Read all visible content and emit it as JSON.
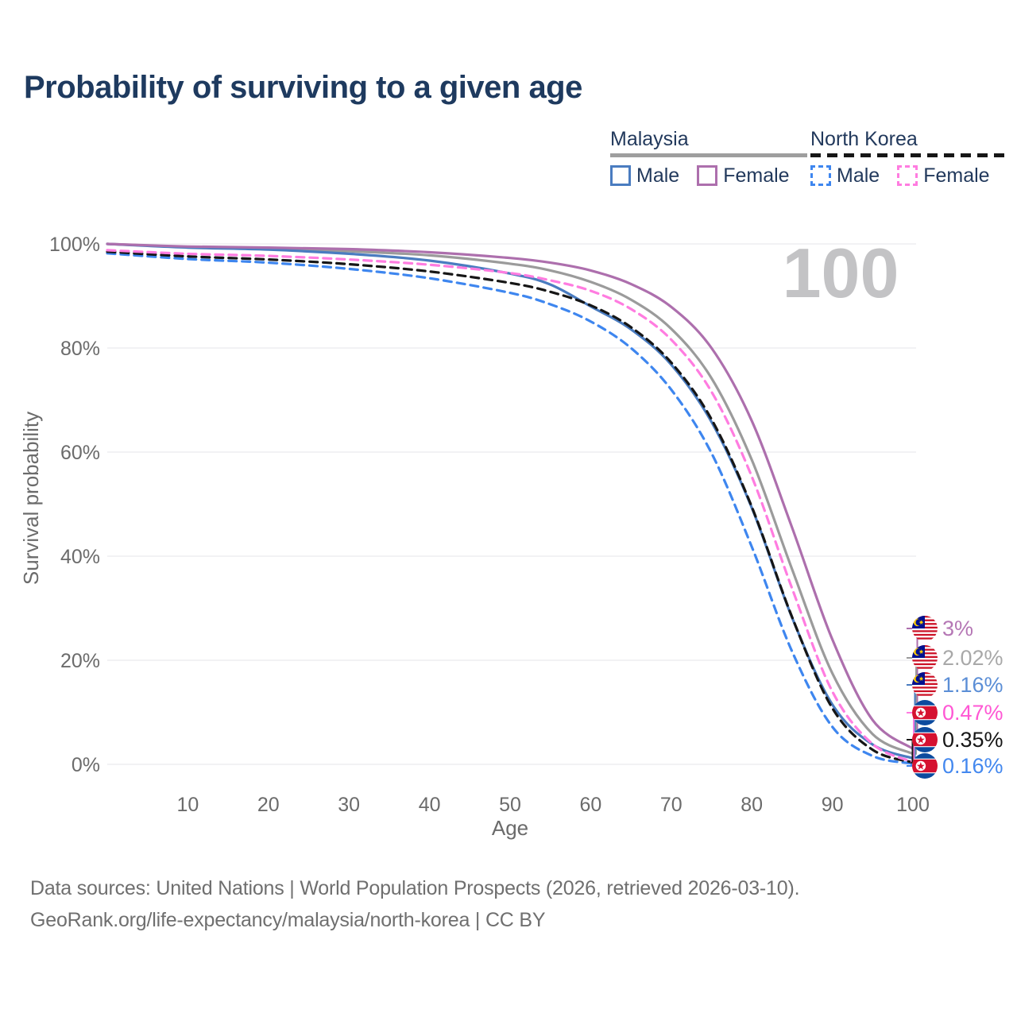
{
  "title": "Probability of surviving to a given age",
  "watermark": "100",
  "legend": {
    "groups": [
      {
        "label": "Malaysia",
        "underline_color": "#9e9e9e",
        "underline_dashed": false,
        "items": [
          {
            "label": "Male",
            "color": "#4a7cc0",
            "dashed": false
          },
          {
            "label": "Female",
            "color": "#ad6fad",
            "dashed": false
          }
        ]
      },
      {
        "label": "North Korea",
        "underline_color": "#161616",
        "underline_dashed": true,
        "items": [
          {
            "label": "Male",
            "color": "#3e86ef",
            "dashed": true
          },
          {
            "label": "Female",
            "color": "#ff7ce0",
            "dashed": true
          }
        ]
      }
    ]
  },
  "chart_data": {
    "type": "line",
    "title": "Probability of surviving to a given age",
    "xlabel": "Age",
    "ylabel": "Survival probability",
    "xlim": [
      0,
      100
    ],
    "ylim": [
      0,
      100
    ],
    "x_ticks": [
      10,
      20,
      30,
      40,
      50,
      60,
      70,
      80,
      90,
      100
    ],
    "y_ticks": [
      {
        "value": 0,
        "label": "0%"
      },
      {
        "value": 20,
        "label": "20%"
      },
      {
        "value": 40,
        "label": "40%"
      },
      {
        "value": 60,
        "label": "60%"
      },
      {
        "value": 80,
        "label": "80%"
      },
      {
        "value": 100,
        "label": "100%"
      }
    ],
    "grid": "horizontal-only",
    "ages": [
      0,
      10,
      20,
      30,
      40,
      50,
      55,
      60,
      65,
      70,
      75,
      80,
      85,
      90,
      95,
      100
    ],
    "series": [
      {
        "name": "Malaysia Female",
        "country": "Malaysia",
        "sex": "Female",
        "color": "#ad6fad",
        "dashed": false,
        "flag": "malaysia",
        "end_label": "3%",
        "end_label_color": "#b577b5",
        "values": [
          100,
          99.5,
          99.3,
          99.0,
          98.4,
          97.3,
          96.4,
          94.9,
          92.3,
          87.9,
          80.0,
          66.0,
          45.5,
          24.0,
          8.5,
          3.0
        ]
      },
      {
        "name": "Malaysia Total",
        "country": "Malaysia",
        "sex": "Both",
        "color": "#9b9b9b",
        "dashed": false,
        "flag": "malaysia",
        "end_label": "2.02%",
        "end_label_color": "#a8a8a8",
        "values": [
          100,
          99.4,
          99.1,
          98.6,
          97.8,
          96.2,
          94.9,
          92.7,
          89.3,
          83.7,
          74.2,
          58.5,
          37.5,
          17.5,
          5.8,
          2.02
        ]
      },
      {
        "name": "Malaysia Male",
        "country": "Malaysia",
        "sex": "Male",
        "color": "#4a7cc0",
        "dashed": false,
        "flag": "malaysia",
        "end_label": "1.16%",
        "end_label_color": "#5b8ed6",
        "values": [
          100,
          99.3,
          98.9,
          98.1,
          96.8,
          94.3,
          92.2,
          88.0,
          83.6,
          76.8,
          65.8,
          49.3,
          28.2,
          11.5,
          3.8,
          1.16
        ]
      },
      {
        "name": "North Korea Female",
        "country": "North Korea",
        "sex": "Female",
        "color": "#ff7ce0",
        "dashed": true,
        "flag": "north-korea",
        "end_label": "0.47%",
        "end_label_color": "#ff57d4",
        "values": [
          98.8,
          98.1,
          97.7,
          97.0,
          96.0,
          94.4,
          93.0,
          91.0,
          87.5,
          81.6,
          71.6,
          55.3,
          33.8,
          14.0,
          3.9,
          0.47
        ]
      },
      {
        "name": "North Korea Total",
        "country": "North Korea",
        "sex": "Both",
        "color": "#161616",
        "dashed": true,
        "flag": "north-korea",
        "end_label": "0.35%",
        "end_label_color": "#161616",
        "values": [
          98.5,
          97.6,
          97.0,
          96.1,
          94.7,
          92.5,
          90.8,
          88.2,
          84.0,
          77.2,
          66.3,
          49.5,
          28.3,
          10.8,
          2.8,
          0.35
        ]
      },
      {
        "name": "North Korea Male",
        "country": "North Korea",
        "sex": "Male",
        "color": "#3e86ef",
        "dashed": true,
        "flag": "north-korea",
        "end_label": "0.16%",
        "end_label_color": "#4388ef",
        "values": [
          98.2,
          97.1,
          96.4,
          95.2,
          93.4,
          90.6,
          88.4,
          85.1,
          80.0,
          72.0,
          59.8,
          41.8,
          21.7,
          7.2,
          1.6,
          0.16
        ]
      }
    ]
  },
  "footer": {
    "line1": "Data sources: United Nations | World Population Prospects (2026, retrieved 2026-03-10).",
    "line2": "GeoRank.org/life-expectancy/malaysia/north-korea | CC BY"
  },
  "colors": {
    "title_text": "#1e3a5f",
    "legend_text": "#22395c",
    "axis_text": "#6b6b6b",
    "grid": "#eaeaee",
    "watermark": "#c3c3c5",
    "footer_text": "#6f6f6f"
  }
}
